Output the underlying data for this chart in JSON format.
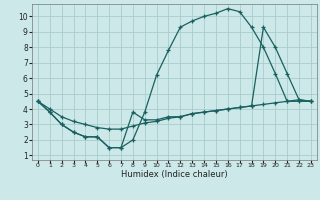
{
  "xlabel": "Humidex (Indice chaleur)",
  "bg_color": "#cce8e8",
  "grid_color": "#aacccc",
  "line_color": "#1a6060",
  "xlim": [
    -0.5,
    23.5
  ],
  "ylim": [
    0.7,
    10.8
  ],
  "xticks": [
    0,
    1,
    2,
    3,
    4,
    5,
    6,
    7,
    8,
    9,
    10,
    11,
    12,
    13,
    14,
    15,
    16,
    17,
    18,
    19,
    20,
    21,
    22,
    23
  ],
  "yticks": [
    1,
    2,
    3,
    4,
    5,
    6,
    7,
    8,
    9,
    10
  ],
  "curve1_x": [
    0,
    1,
    2,
    3,
    4,
    5,
    6,
    7,
    8,
    9,
    10,
    11,
    12,
    13,
    14,
    15,
    16,
    17,
    18,
    19,
    20,
    21,
    22,
    23
  ],
  "curve1_y": [
    4.5,
    3.8,
    3.0,
    2.5,
    2.2,
    2.2,
    1.5,
    1.5,
    2.0,
    3.8,
    6.2,
    7.8,
    9.3,
    9.7,
    10.0,
    10.2,
    10.5,
    10.3,
    9.3,
    8.0,
    6.3,
    4.5,
    4.6,
    4.5
  ],
  "curve2_x": [
    0,
    1,
    2,
    3,
    4,
    5,
    6,
    7,
    8,
    9,
    10,
    11,
    12,
    13,
    14,
    15,
    16,
    17,
    18,
    19,
    20,
    21,
    22,
    23
  ],
  "curve2_y": [
    4.5,
    4.0,
    3.5,
    3.2,
    3.0,
    2.8,
    2.7,
    2.7,
    2.9,
    3.1,
    3.2,
    3.4,
    3.5,
    3.7,
    3.8,
    3.9,
    4.0,
    4.1,
    4.2,
    4.3,
    4.4,
    4.5,
    4.5,
    4.5
  ],
  "curve3_x": [
    0,
    1,
    2,
    3,
    4,
    5,
    6,
    7,
    8,
    9,
    10,
    11,
    12,
    13,
    14,
    15,
    16,
    17,
    18,
    19,
    20,
    21,
    22,
    23
  ],
  "curve3_y": [
    4.5,
    3.8,
    3.0,
    2.5,
    2.2,
    2.2,
    1.5,
    1.5,
    3.8,
    3.3,
    3.3,
    3.5,
    3.5,
    3.7,
    3.8,
    3.9,
    4.0,
    4.1,
    4.2,
    9.3,
    8.0,
    6.3,
    4.6,
    4.5
  ]
}
